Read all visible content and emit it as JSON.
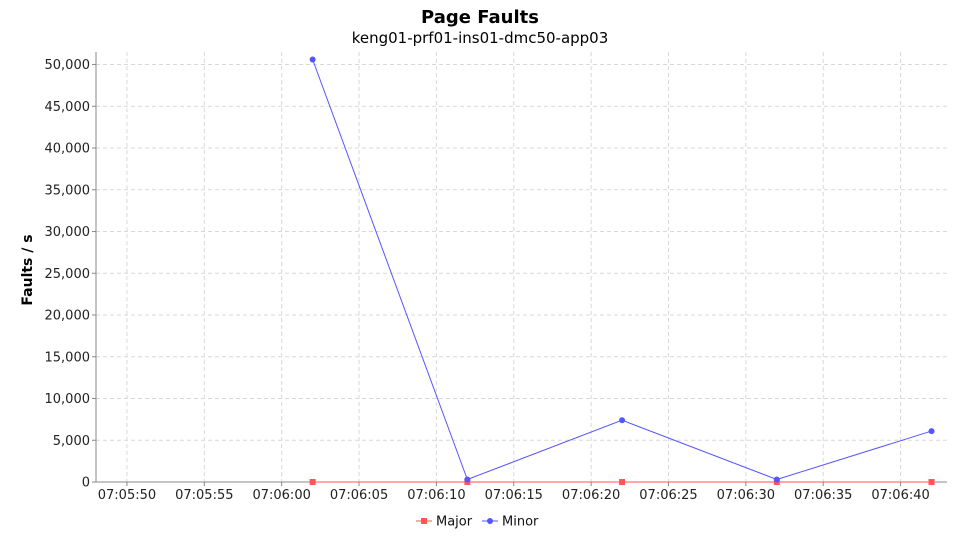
{
  "chart_data": {
    "type": "line",
    "title": "Page Faults",
    "subtitle": "keng01-prf01-ins01-dmc50-app03",
    "xlabel": "",
    "ylabel": "Faults / s",
    "xlim": [
      "07:05:48",
      "07:06:43"
    ],
    "ylim": [
      0,
      51500
    ],
    "x_ticks": [
      "07:05:50",
      "07:05:55",
      "07:06:00",
      "07:06:05",
      "07:06:10",
      "07:06:15",
      "07:06:20",
      "07:06:25",
      "07:06:30",
      "07:06:35",
      "07:06:40"
    ],
    "y_ticks": [
      "0",
      "5,000",
      "10,000",
      "15,000",
      "20,000",
      "25,000",
      "30,000",
      "35,000",
      "40,000",
      "45,000",
      "50,000"
    ],
    "y_tick_values": [
      0,
      5000,
      10000,
      15000,
      20000,
      25000,
      30000,
      35000,
      40000,
      45000,
      50000
    ],
    "grid": true,
    "legend_position": "bottom",
    "x": [
      "07:06:02",
      "07:06:12",
      "07:06:22",
      "07:06:32",
      "07:06:42"
    ],
    "series": [
      {
        "name": "Major",
        "values": [
          0,
          0,
          0,
          0,
          0
        ],
        "color": "#ff5555",
        "marker": "square"
      },
      {
        "name": "Minor",
        "values": [
          50600,
          300,
          7400,
          300,
          6100
        ],
        "color": "#5555ff",
        "marker": "circle"
      }
    ]
  }
}
